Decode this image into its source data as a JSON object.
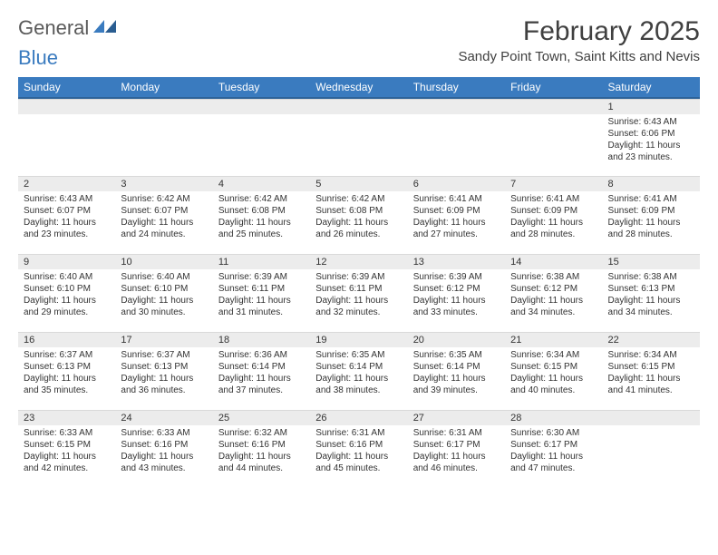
{
  "logo": {
    "part1": "General",
    "part2": "Blue"
  },
  "title": "February 2025",
  "location": "Sandy Point Town, Saint Kitts and Nevis",
  "weekdays": [
    "Sunday",
    "Monday",
    "Tuesday",
    "Wednesday",
    "Thursday",
    "Friday",
    "Saturday"
  ],
  "colors": {
    "header_bg": "#3a7bbf",
    "header_border": "#2e6399",
    "daynum_bg": "#ececec"
  },
  "weeks": [
    [
      null,
      null,
      null,
      null,
      null,
      null,
      {
        "n": "1",
        "sr": "6:43 AM",
        "ss": "6:06 PM",
        "dl": "11 hours and 23 minutes."
      }
    ],
    [
      {
        "n": "2",
        "sr": "6:43 AM",
        "ss": "6:07 PM",
        "dl": "11 hours and 23 minutes."
      },
      {
        "n": "3",
        "sr": "6:42 AM",
        "ss": "6:07 PM",
        "dl": "11 hours and 24 minutes."
      },
      {
        "n": "4",
        "sr": "6:42 AM",
        "ss": "6:08 PM",
        "dl": "11 hours and 25 minutes."
      },
      {
        "n": "5",
        "sr": "6:42 AM",
        "ss": "6:08 PM",
        "dl": "11 hours and 26 minutes."
      },
      {
        "n": "6",
        "sr": "6:41 AM",
        "ss": "6:09 PM",
        "dl": "11 hours and 27 minutes."
      },
      {
        "n": "7",
        "sr": "6:41 AM",
        "ss": "6:09 PM",
        "dl": "11 hours and 28 minutes."
      },
      {
        "n": "8",
        "sr": "6:41 AM",
        "ss": "6:09 PM",
        "dl": "11 hours and 28 minutes."
      }
    ],
    [
      {
        "n": "9",
        "sr": "6:40 AM",
        "ss": "6:10 PM",
        "dl": "11 hours and 29 minutes."
      },
      {
        "n": "10",
        "sr": "6:40 AM",
        "ss": "6:10 PM",
        "dl": "11 hours and 30 minutes."
      },
      {
        "n": "11",
        "sr": "6:39 AM",
        "ss": "6:11 PM",
        "dl": "11 hours and 31 minutes."
      },
      {
        "n": "12",
        "sr": "6:39 AM",
        "ss": "6:11 PM",
        "dl": "11 hours and 32 minutes."
      },
      {
        "n": "13",
        "sr": "6:39 AM",
        "ss": "6:12 PM",
        "dl": "11 hours and 33 minutes."
      },
      {
        "n": "14",
        "sr": "6:38 AM",
        "ss": "6:12 PM",
        "dl": "11 hours and 34 minutes."
      },
      {
        "n": "15",
        "sr": "6:38 AM",
        "ss": "6:13 PM",
        "dl": "11 hours and 34 minutes."
      }
    ],
    [
      {
        "n": "16",
        "sr": "6:37 AM",
        "ss": "6:13 PM",
        "dl": "11 hours and 35 minutes."
      },
      {
        "n": "17",
        "sr": "6:37 AM",
        "ss": "6:13 PM",
        "dl": "11 hours and 36 minutes."
      },
      {
        "n": "18",
        "sr": "6:36 AM",
        "ss": "6:14 PM",
        "dl": "11 hours and 37 minutes."
      },
      {
        "n": "19",
        "sr": "6:35 AM",
        "ss": "6:14 PM",
        "dl": "11 hours and 38 minutes."
      },
      {
        "n": "20",
        "sr": "6:35 AM",
        "ss": "6:14 PM",
        "dl": "11 hours and 39 minutes."
      },
      {
        "n": "21",
        "sr": "6:34 AM",
        "ss": "6:15 PM",
        "dl": "11 hours and 40 minutes."
      },
      {
        "n": "22",
        "sr": "6:34 AM",
        "ss": "6:15 PM",
        "dl": "11 hours and 41 minutes."
      }
    ],
    [
      {
        "n": "23",
        "sr": "6:33 AM",
        "ss": "6:15 PM",
        "dl": "11 hours and 42 minutes."
      },
      {
        "n": "24",
        "sr": "6:33 AM",
        "ss": "6:16 PM",
        "dl": "11 hours and 43 minutes."
      },
      {
        "n": "25",
        "sr": "6:32 AM",
        "ss": "6:16 PM",
        "dl": "11 hours and 44 minutes."
      },
      {
        "n": "26",
        "sr": "6:31 AM",
        "ss": "6:16 PM",
        "dl": "11 hours and 45 minutes."
      },
      {
        "n": "27",
        "sr": "6:31 AM",
        "ss": "6:17 PM",
        "dl": "11 hours and 46 minutes."
      },
      {
        "n": "28",
        "sr": "6:30 AM",
        "ss": "6:17 PM",
        "dl": "11 hours and 47 minutes."
      },
      null
    ]
  ],
  "labels": {
    "sunrise": "Sunrise:",
    "sunset": "Sunset:",
    "daylight": "Daylight:"
  }
}
